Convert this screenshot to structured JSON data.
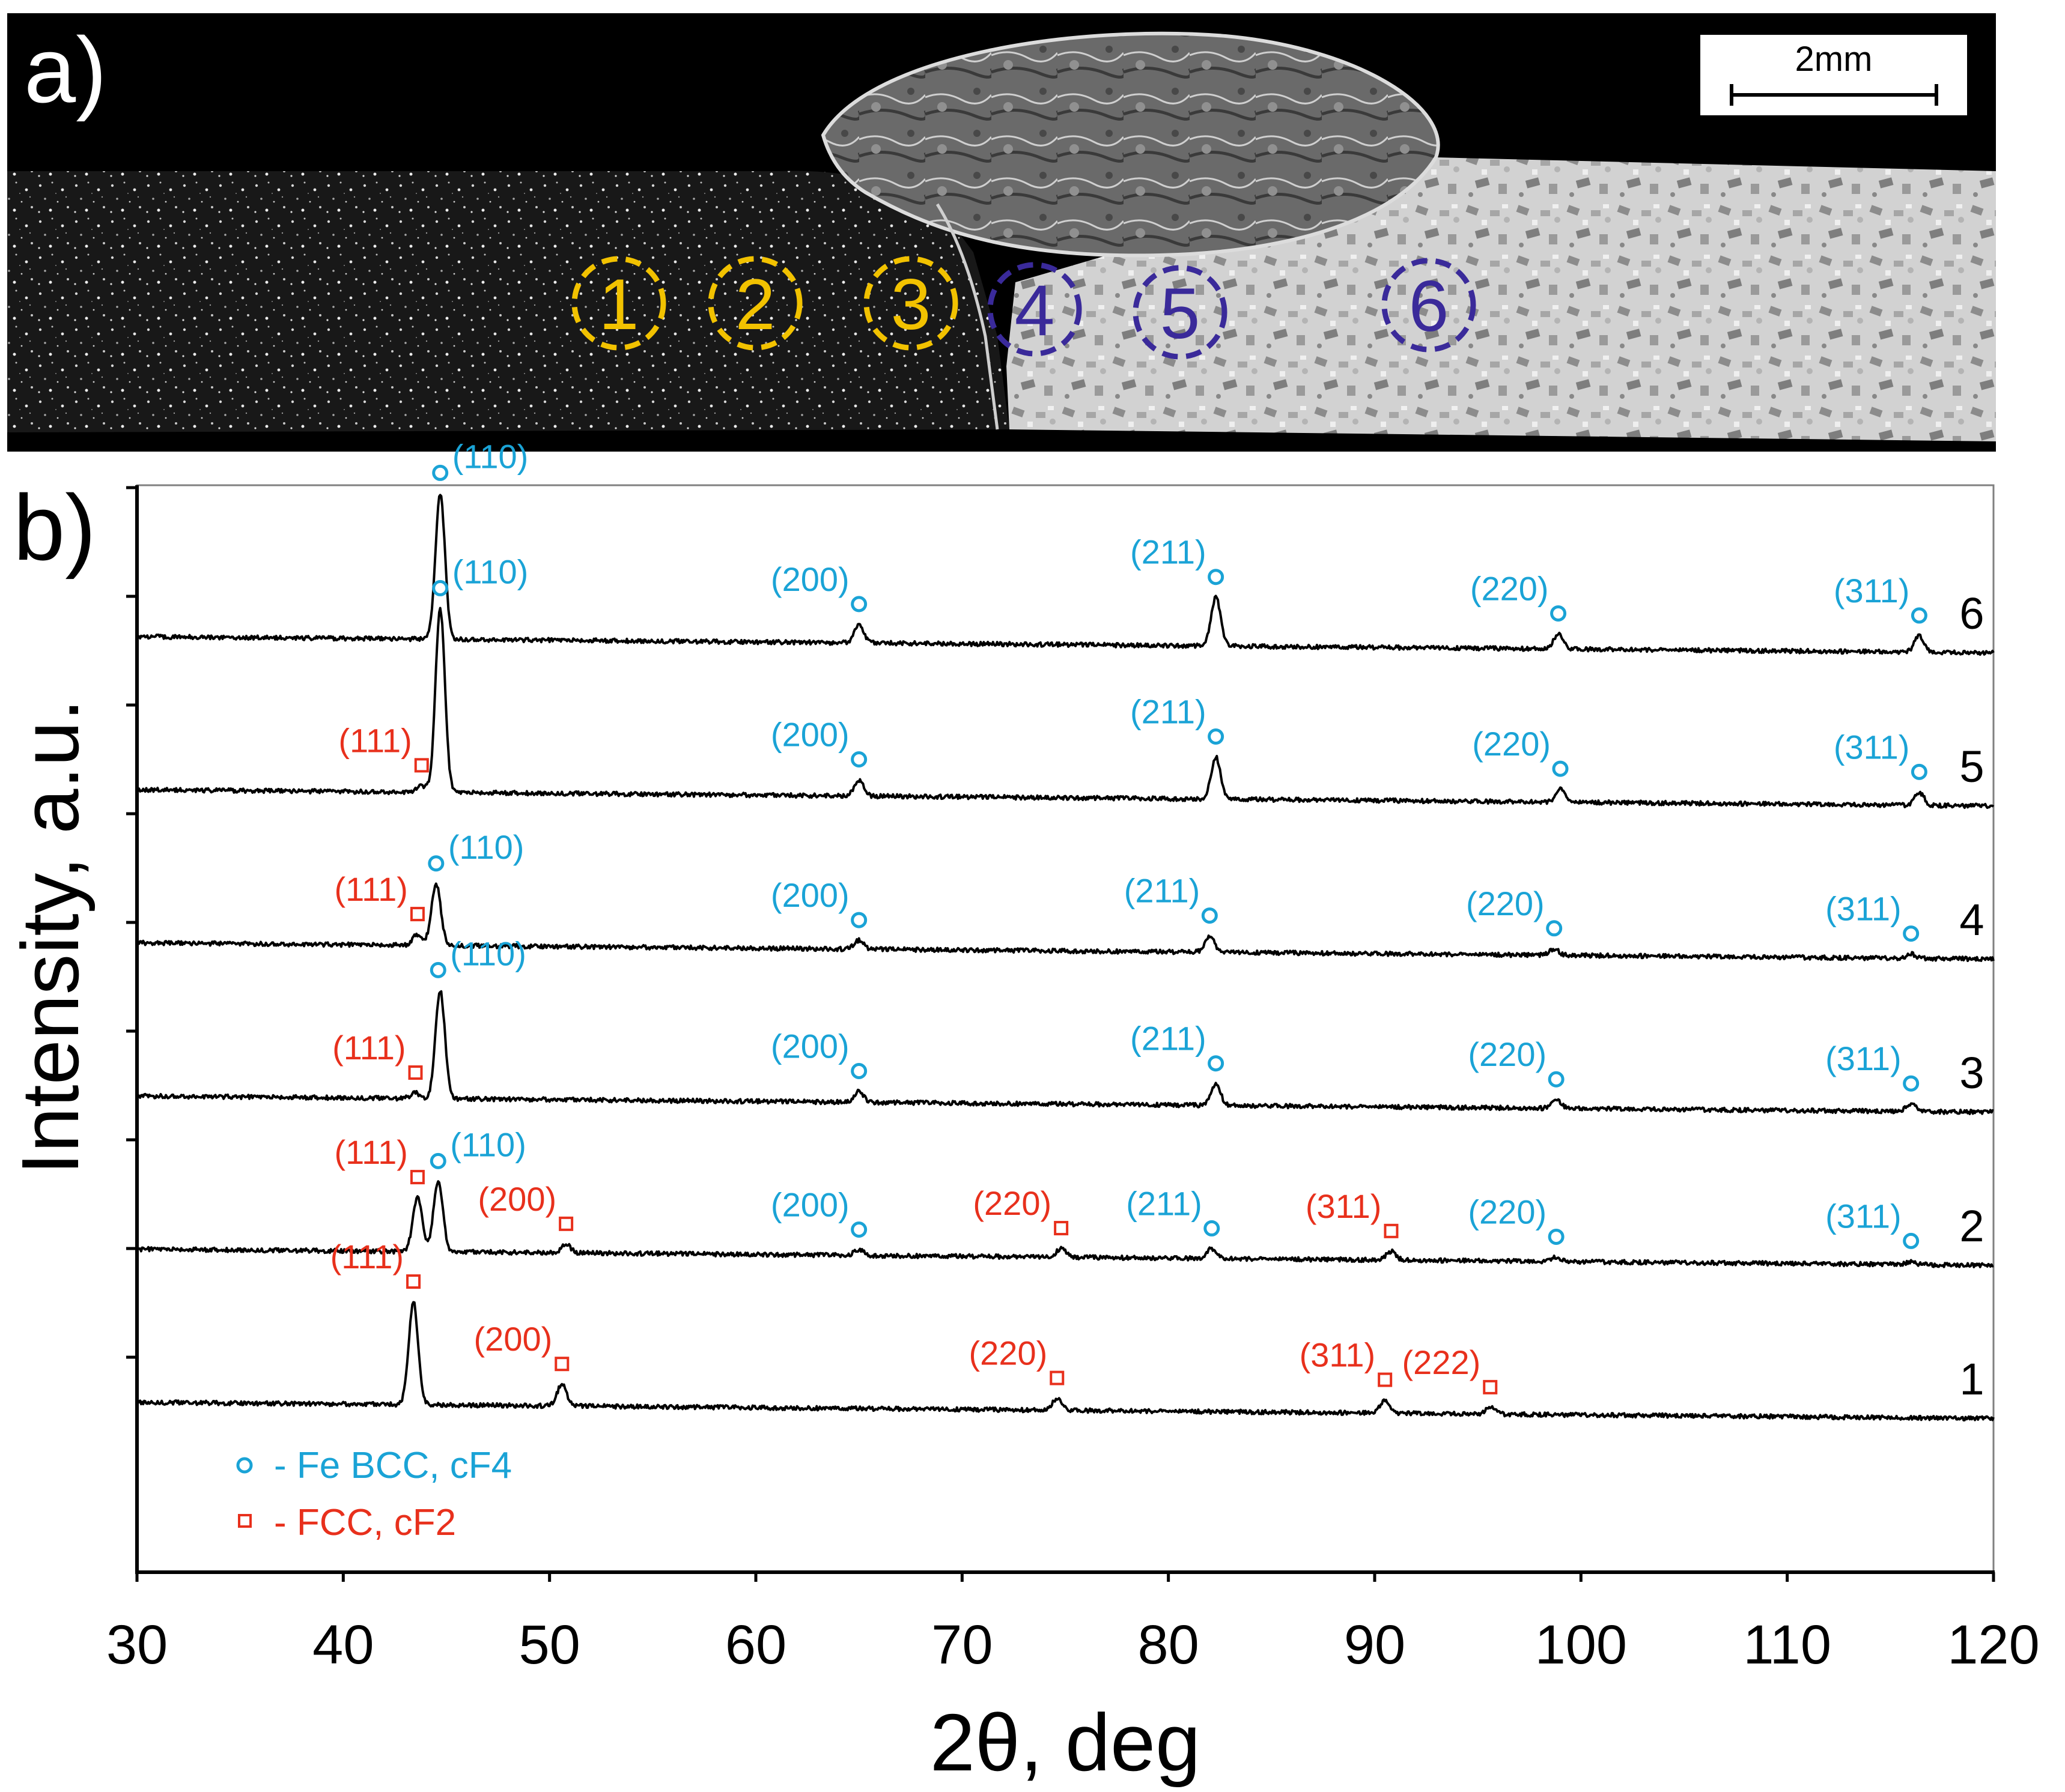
{
  "panel_a": {
    "label": "a)",
    "scale_bar_label": "2mm",
    "zones": [
      {
        "label": "1",
        "color": "#f2c200"
      },
      {
        "label": "2",
        "color": "#f2c200"
      },
      {
        "label": "3",
        "color": "#f2c200"
      },
      {
        "label": "4",
        "color": "#3a2a9a"
      },
      {
        "label": "5",
        "color": "#3a2a9a"
      },
      {
        "label": "6",
        "color": "#3a2a9a"
      }
    ]
  },
  "panel_b": {
    "label": "b)"
  },
  "chart_data": {
    "type": "line",
    "xlabel": "2θ, deg",
    "ylabel": "Intensity, a.u.",
    "xlim": [
      30,
      120
    ],
    "xticks": [
      30,
      40,
      50,
      60,
      70,
      80,
      90,
      100,
      110,
      120
    ],
    "grid": false,
    "legend_placement": "bottom-left",
    "colors": {
      "bcc": "#1aa3d6",
      "fcc": "#e8301c",
      "line": "#000000"
    },
    "legend": [
      {
        "marker": "circle",
        "label": "- Fe BCC, cF4",
        "color": "#1aa3d6"
      },
      {
        "marker": "square",
        "label": "- FCC, cF2",
        "color": "#e8301c"
      }
    ],
    "series": [
      {
        "name": "6",
        "peaks": [
          [
            44.7,
            13.5
          ],
          [
            65.0,
            1.7
          ],
          [
            82.3,
            4.5
          ],
          [
            98.9,
            1.4
          ],
          [
            116.4,
            1.5
          ]
        ],
        "annotations": [
          {
            "phase": "bcc",
            "hkl": "(110)",
            "x": 44.7
          },
          {
            "phase": "bcc",
            "hkl": "(200)",
            "x": 65.0
          },
          {
            "phase": "bcc",
            "hkl": "(211)",
            "x": 82.3
          },
          {
            "phase": "bcc",
            "hkl": "(220)",
            "x": 98.9
          },
          {
            "phase": "bcc",
            "hkl": "(311)",
            "x": 116.4
          }
        ]
      },
      {
        "name": "5",
        "peaks": [
          [
            43.8,
            0.6
          ],
          [
            44.7,
            17.0
          ],
          [
            65.0,
            1.5
          ],
          [
            82.3,
            3.9
          ],
          [
            99.0,
            1.2
          ],
          [
            116.4,
            1.2
          ]
        ],
        "annotations": [
          {
            "phase": "fcc",
            "hkl": "(111)",
            "x": 43.8
          },
          {
            "phase": "bcc",
            "hkl": "(110)",
            "x": 44.7
          },
          {
            "phase": "bcc",
            "hkl": "(200)",
            "x": 65.0
          },
          {
            "phase": "bcc",
            "hkl": "(211)",
            "x": 82.3
          },
          {
            "phase": "bcc",
            "hkl": "(220)",
            "x": 99.0
          },
          {
            "phase": "bcc",
            "hkl": "(311)",
            "x": 116.4
          }
        ]
      },
      {
        "name": "4",
        "peaks": [
          [
            43.6,
            1.0
          ],
          [
            44.5,
            5.7
          ],
          [
            65.0,
            0.8
          ],
          [
            82.0,
            1.5
          ],
          [
            98.7,
            0.6
          ],
          [
            116.0,
            0.4
          ]
        ],
        "annotations": [
          {
            "phase": "fcc",
            "hkl": "(111)",
            "x": 43.6
          },
          {
            "phase": "bcc",
            "hkl": "(110)",
            "x": 44.5
          },
          {
            "phase": "bcc",
            "hkl": "(200)",
            "x": 65.0
          },
          {
            "phase": "bcc",
            "hkl": "(211)",
            "x": 82.0
          },
          {
            "phase": "bcc",
            "hkl": "(220)",
            "x": 98.7
          },
          {
            "phase": "bcc",
            "hkl": "(311)",
            "x": 116.0
          }
        ]
      },
      {
        "name": "3",
        "peaks": [
          [
            43.5,
            0.5
          ],
          [
            44.7,
            10.0
          ],
          [
            65.0,
            1.0
          ],
          [
            82.3,
            2.0
          ],
          [
            98.8,
            0.8
          ],
          [
            116.0,
            0.7
          ]
        ],
        "annotations": [
          {
            "phase": "fcc",
            "hkl": "(111)",
            "x": 43.5
          },
          {
            "phase": "bcc",
            "hkl": "(110)",
            "x": 44.6
          },
          {
            "phase": "bcc",
            "hkl": "(200)",
            "x": 65.0
          },
          {
            "phase": "bcc",
            "hkl": "(211)",
            "x": 82.3
          },
          {
            "phase": "bcc",
            "hkl": "(220)",
            "x": 98.8
          },
          {
            "phase": "bcc",
            "hkl": "(311)",
            "x": 116.0
          }
        ]
      },
      {
        "name": "2",
        "peaks": [
          [
            43.6,
            5.0
          ],
          [
            44.6,
            6.5
          ],
          [
            50.8,
            0.8
          ],
          [
            65.0,
            0.5
          ],
          [
            74.8,
            0.8
          ],
          [
            82.1,
            0.9
          ],
          [
            90.8,
            0.8
          ],
          [
            98.8,
            0.4
          ],
          [
            116.0,
            0.3
          ]
        ],
        "annotations": [
          {
            "phase": "fcc",
            "hkl": "(111)",
            "x": 43.6
          },
          {
            "phase": "bcc",
            "hkl": "(110)",
            "x": 44.6
          },
          {
            "phase": "fcc",
            "hkl": "(200)",
            "x": 50.8
          },
          {
            "phase": "bcc",
            "hkl": "(200)",
            "x": 65.0
          },
          {
            "phase": "fcc",
            "hkl": "(220)",
            "x": 74.8
          },
          {
            "phase": "bcc",
            "hkl": "(211)",
            "x": 82.1
          },
          {
            "phase": "fcc",
            "hkl": "(311)",
            "x": 90.8
          },
          {
            "phase": "bcc",
            "hkl": "(220)",
            "x": 98.8
          },
          {
            "phase": "bcc",
            "hkl": "(311)",
            "x": 116.0
          }
        ]
      },
      {
        "name": "1",
        "peaks": [
          [
            43.4,
            9.5
          ],
          [
            50.6,
            2.0
          ],
          [
            74.6,
            1.1
          ],
          [
            90.5,
            1.2
          ],
          [
            95.6,
            0.6
          ]
        ],
        "annotations": [
          {
            "phase": "fcc",
            "hkl": "(111)",
            "x": 43.4
          },
          {
            "phase": "fcc",
            "hkl": "(200)",
            "x": 50.6
          },
          {
            "phase": "fcc",
            "hkl": "(220)",
            "x": 74.6
          },
          {
            "phase": "fcc",
            "hkl": "(311)",
            "x": 90.5
          },
          {
            "phase": "fcc",
            "hkl": "(222)",
            "x": 95.6
          }
        ]
      }
    ]
  }
}
